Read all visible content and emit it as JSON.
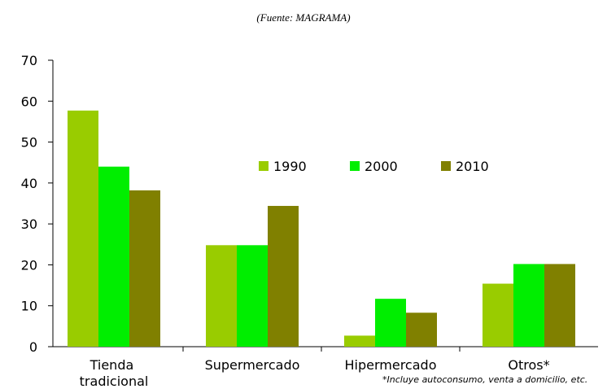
{
  "chart_data": {
    "type": "bar",
    "subtitle": "(Fuente:  MAGRAMA)",
    "categories": [
      "Tienda tradicional",
      "Supermercado",
      "Hipermercado",
      "Otros*"
    ],
    "series": [
      {
        "name": "1990",
        "color": "#99cc00",
        "values": [
          57.7,
          24.8,
          2.7,
          15.4
        ]
      },
      {
        "name": "2000",
        "color": "#00ee00",
        "values": [
          44,
          24.8,
          11.7,
          20.2
        ]
      },
      {
        "name": "2010",
        "color": "#808000",
        "values": [
          38.2,
          34.4,
          8.3,
          20.2
        ]
      }
    ],
    "ylim": [
      0,
      70
    ],
    "yticks": [
      0,
      10,
      20,
      30,
      40,
      50,
      60,
      70
    ],
    "note": "*Incluye autoconsumo, venta a domicilio, etc.",
    "legend": "center"
  }
}
